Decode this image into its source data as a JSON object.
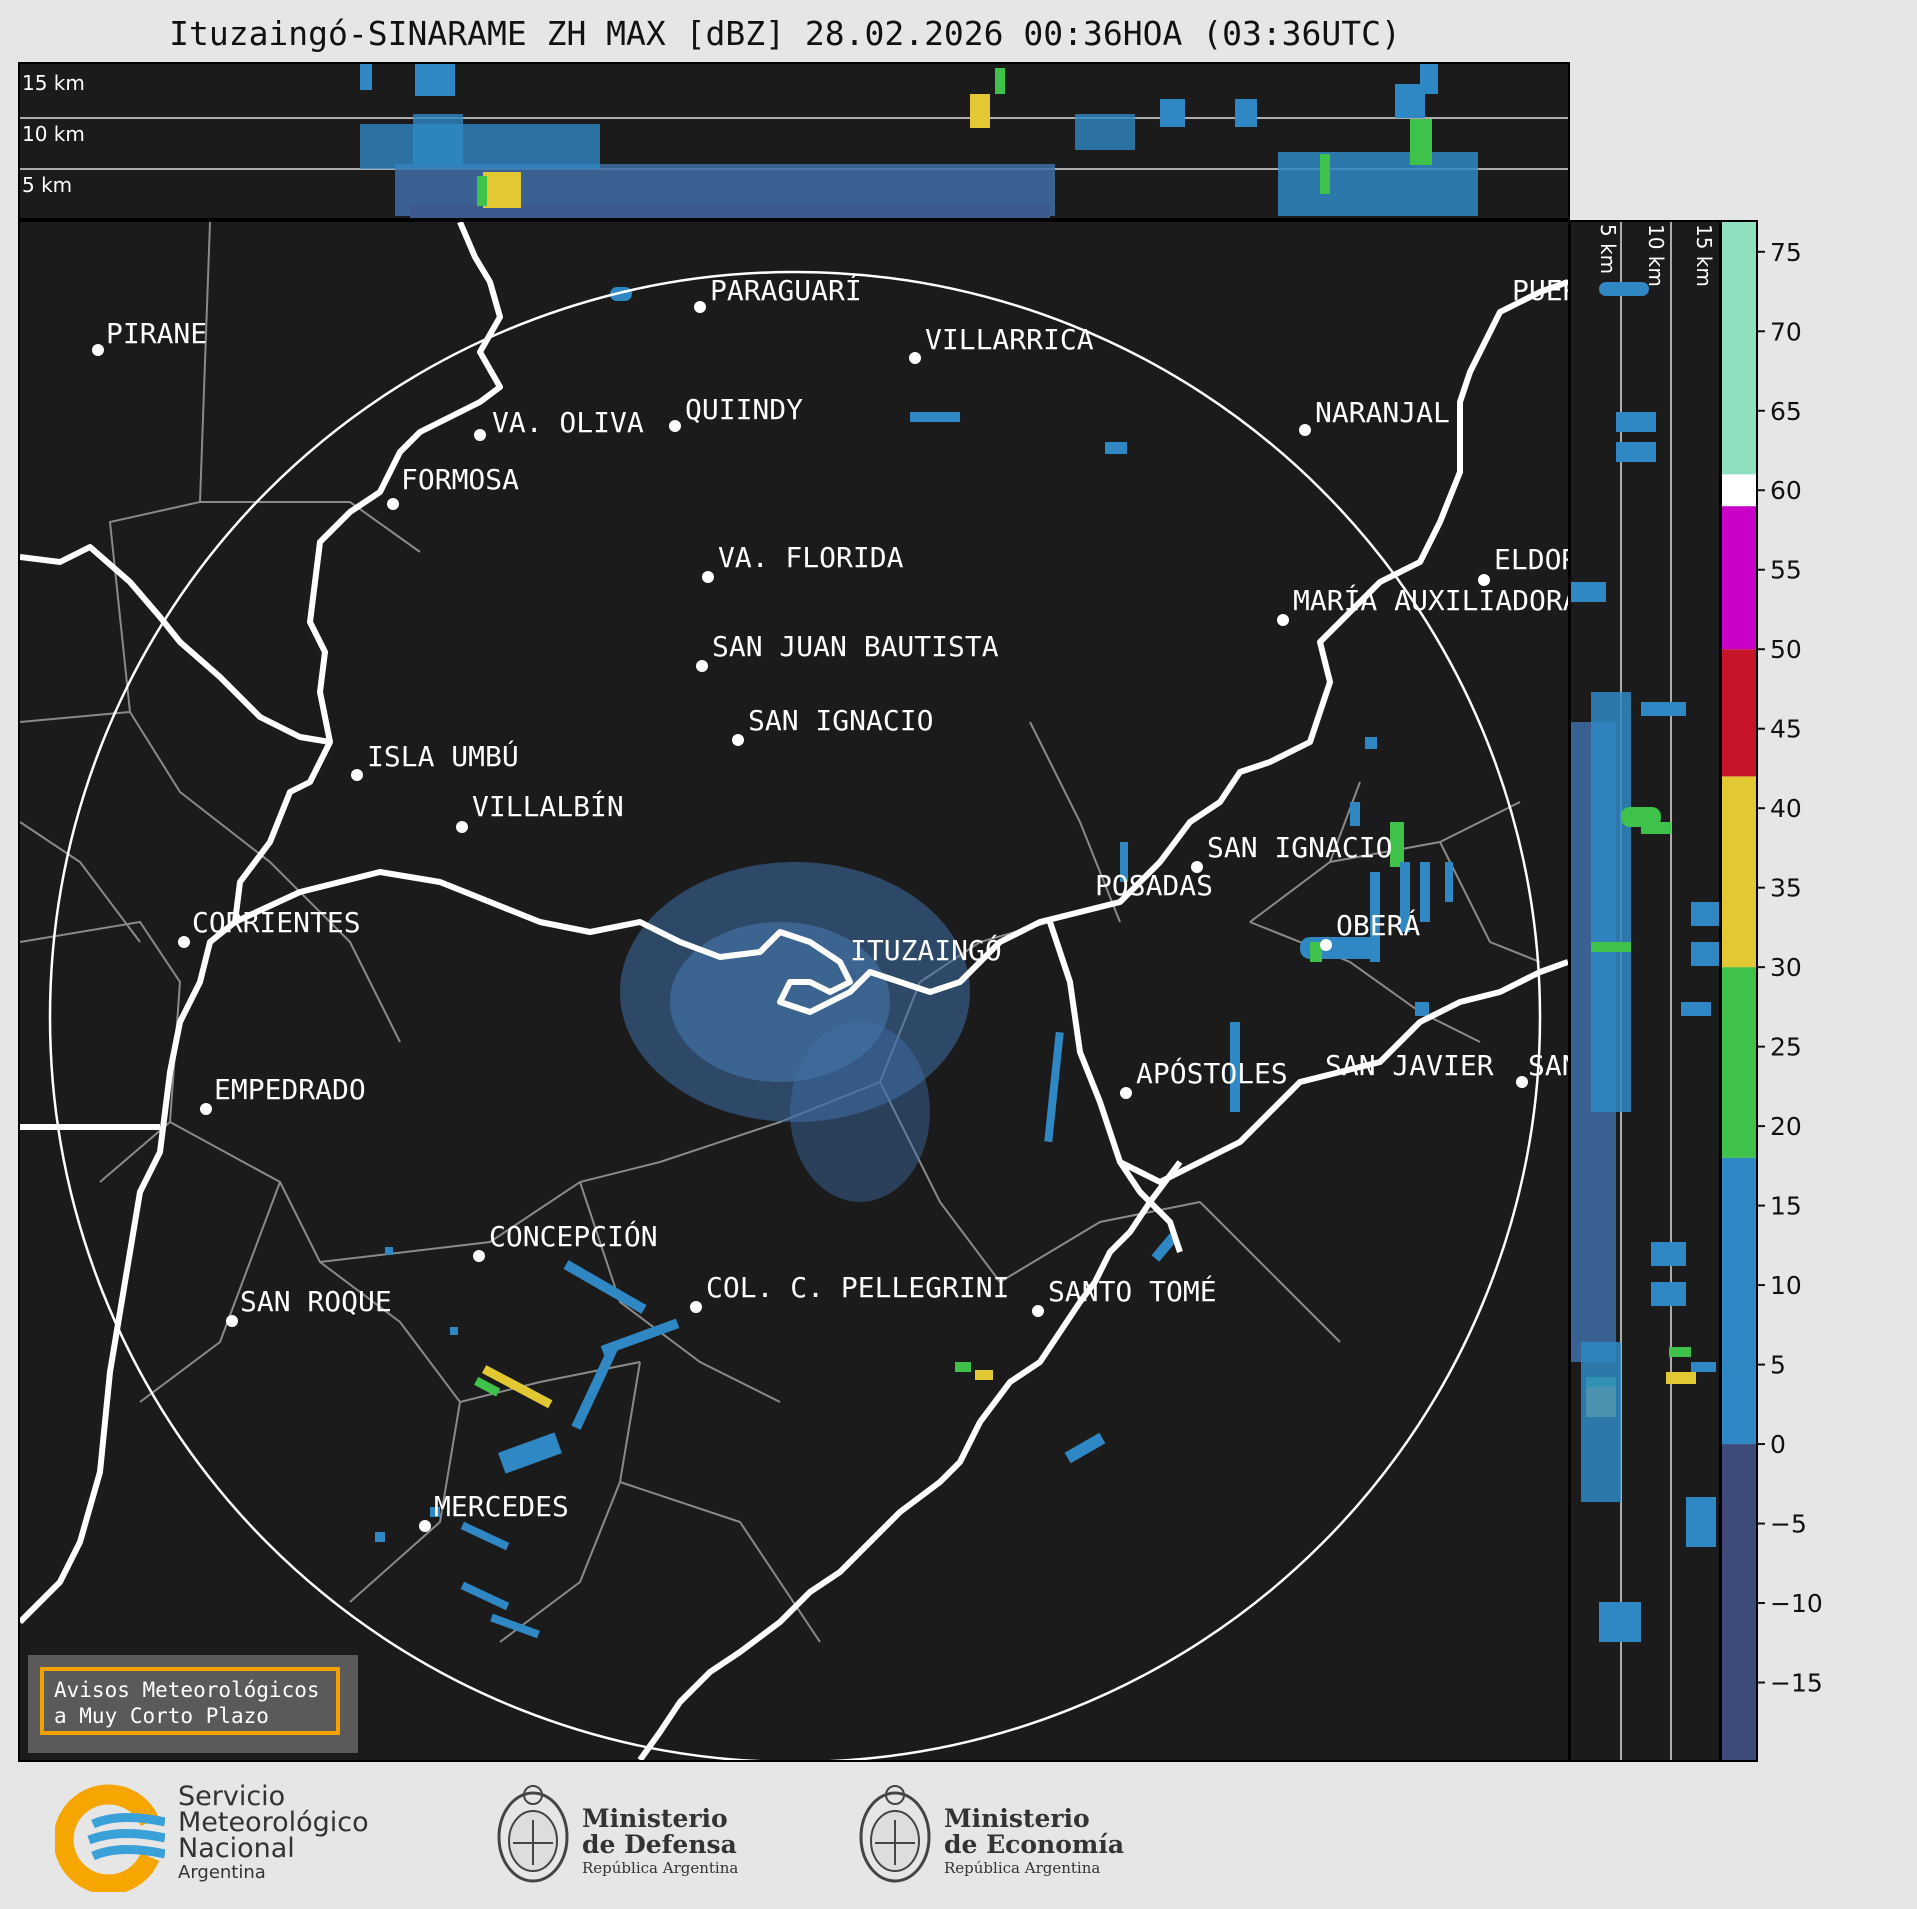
{
  "title": "Ituzaingó-SINARAME ZH MAX [dBZ] 28.02.2026 00:36HOA (03:36UTC)",
  "top_panel": {
    "altitude_labels": [
      "15 km",
      "10 km",
      "5 km"
    ]
  },
  "right_panel": {
    "altitude_labels": [
      "5 km",
      "10 km",
      "15 km"
    ]
  },
  "colorbar": {
    "unit": "dBZ",
    "ticks": [
      "75",
      "70",
      "65",
      "60",
      "55",
      "50",
      "45",
      "40",
      "35",
      "30",
      "25",
      "20",
      "15",
      "10",
      "5",
      "0",
      "−5",
      "−10",
      "−15"
    ],
    "stops": [
      {
        "from": -20,
        "to": 0,
        "color": "#3d4a7a"
      },
      {
        "from": 0,
        "to": 18,
        "color": "#2f88c4"
      },
      {
        "from": 18,
        "to": 30,
        "color": "#3ec24a"
      },
      {
        "from": 30,
        "to": 42,
        "color": "#e2c934"
      },
      {
        "from": 42,
        "to": 50,
        "color": "#c81428"
      },
      {
        "from": 50,
        "to": 59,
        "color": "#c800c8"
      },
      {
        "from": 59,
        "to": 61,
        "color": "#ffffff"
      },
      {
        "from": 61,
        "to": 77,
        "color": "#8ee0bf"
      }
    ]
  },
  "cities": {
    "pirane": "PIRANE",
    "paraguari": "PARAGUARÍ",
    "villarrica": "VILLARRICA",
    "va_oliva": "VA. OLIVA",
    "quiindy": "QUIINDY",
    "naranjal": "NARANJAL",
    "formosa": "FORMOSA",
    "va_florida": "VA. FLORIDA",
    "eldor": "ELDOR",
    "maria_auxiliadora": "MARÍA AUXILIADORA",
    "san_juan_bautista": "SAN JUAN BAUTISTA",
    "san_ignacio_py": "SAN IGNACIO",
    "isla_umbu": "ISLA UMBÚ",
    "villalbin": "VILLALBÍN",
    "san_ignacio_ar": "SAN IGNACIO",
    "posadas": "POSADAS",
    "corrientes": "CORRIENTES",
    "obera": "OBERÁ",
    "ituzaingo": "ITUZAINGÓ",
    "empedrado": "EMPEDRADO",
    "apostoles": "APÓSTOLES",
    "san_javier": "SAN JAVIER",
    "san_right": "SAN",
    "concepcion": "CONCEPCIÓN",
    "col_pellegrini": "COL. C. PELLEGRINI",
    "santo_tome": "SANTO TOMÉ",
    "san_roque": "SAN ROQUE",
    "mercedes": "MERCEDES",
    "puerto": "PUER"
  },
  "warning_box": {
    "line1": "Avisos Meteorológicos",
    "line2": "a Muy Corto Plazo"
  },
  "footer": {
    "smn": {
      "line1": "Servicio",
      "line2": "Meteorológico",
      "line3": "Nacional",
      "line4": "Argentina"
    },
    "defensa": {
      "line1": "Ministerio",
      "line2": "de Defensa",
      "line3": "República Argentina"
    },
    "economia": {
      "line1": "Ministerio",
      "line2": "de Economía",
      "line3": "República Argentina"
    }
  }
}
